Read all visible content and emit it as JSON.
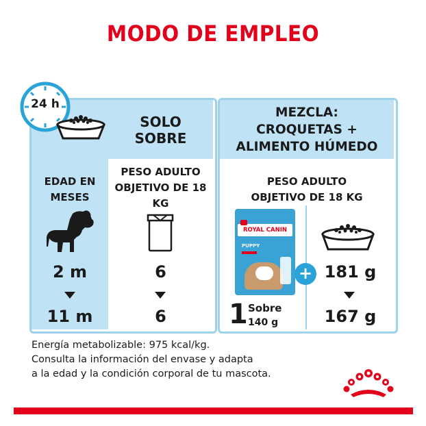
{
  "title": "MODO DE EMPLEO",
  "clock_label": "24 h",
  "left": {
    "header": "SOLO\nSOBRE",
    "col_age_header": "EDAD EN\nMESES",
    "col_weight_header": "PESO ADULTO\nOBJETIVO DE 18\nKG",
    "age_from": "2 m",
    "age_to": "11 m",
    "count_from": "6",
    "count_to": "6"
  },
  "right": {
    "header": "MEZCLA:\nCROQUETAS +\nALIMENTO HÚMEDO",
    "weight_header": "PESO ADULTO\nOBJETIVO DE 18 KG",
    "pouch_brand": "ROYAL CANIN",
    "pouch_name": "PUPPY",
    "sobre_count": "1",
    "sobre_label": "Sobre",
    "sobre_weight": "140 g",
    "plus": "+",
    "kibble_from": "181 g",
    "kibble_to": "167 g"
  },
  "footer": {
    "line1": "Energía metabolizable: 975 kcal/kg.",
    "line2": "Consulta la información del envase y adapta",
    "line3": "a la edad y la condición corporal de tu mascota."
  },
  "colors": {
    "red": "#e3001b",
    "light_blue": "#bfe2f4",
    "border_blue": "#9cd2ec",
    "accent_blue": "#2aa4d8"
  }
}
